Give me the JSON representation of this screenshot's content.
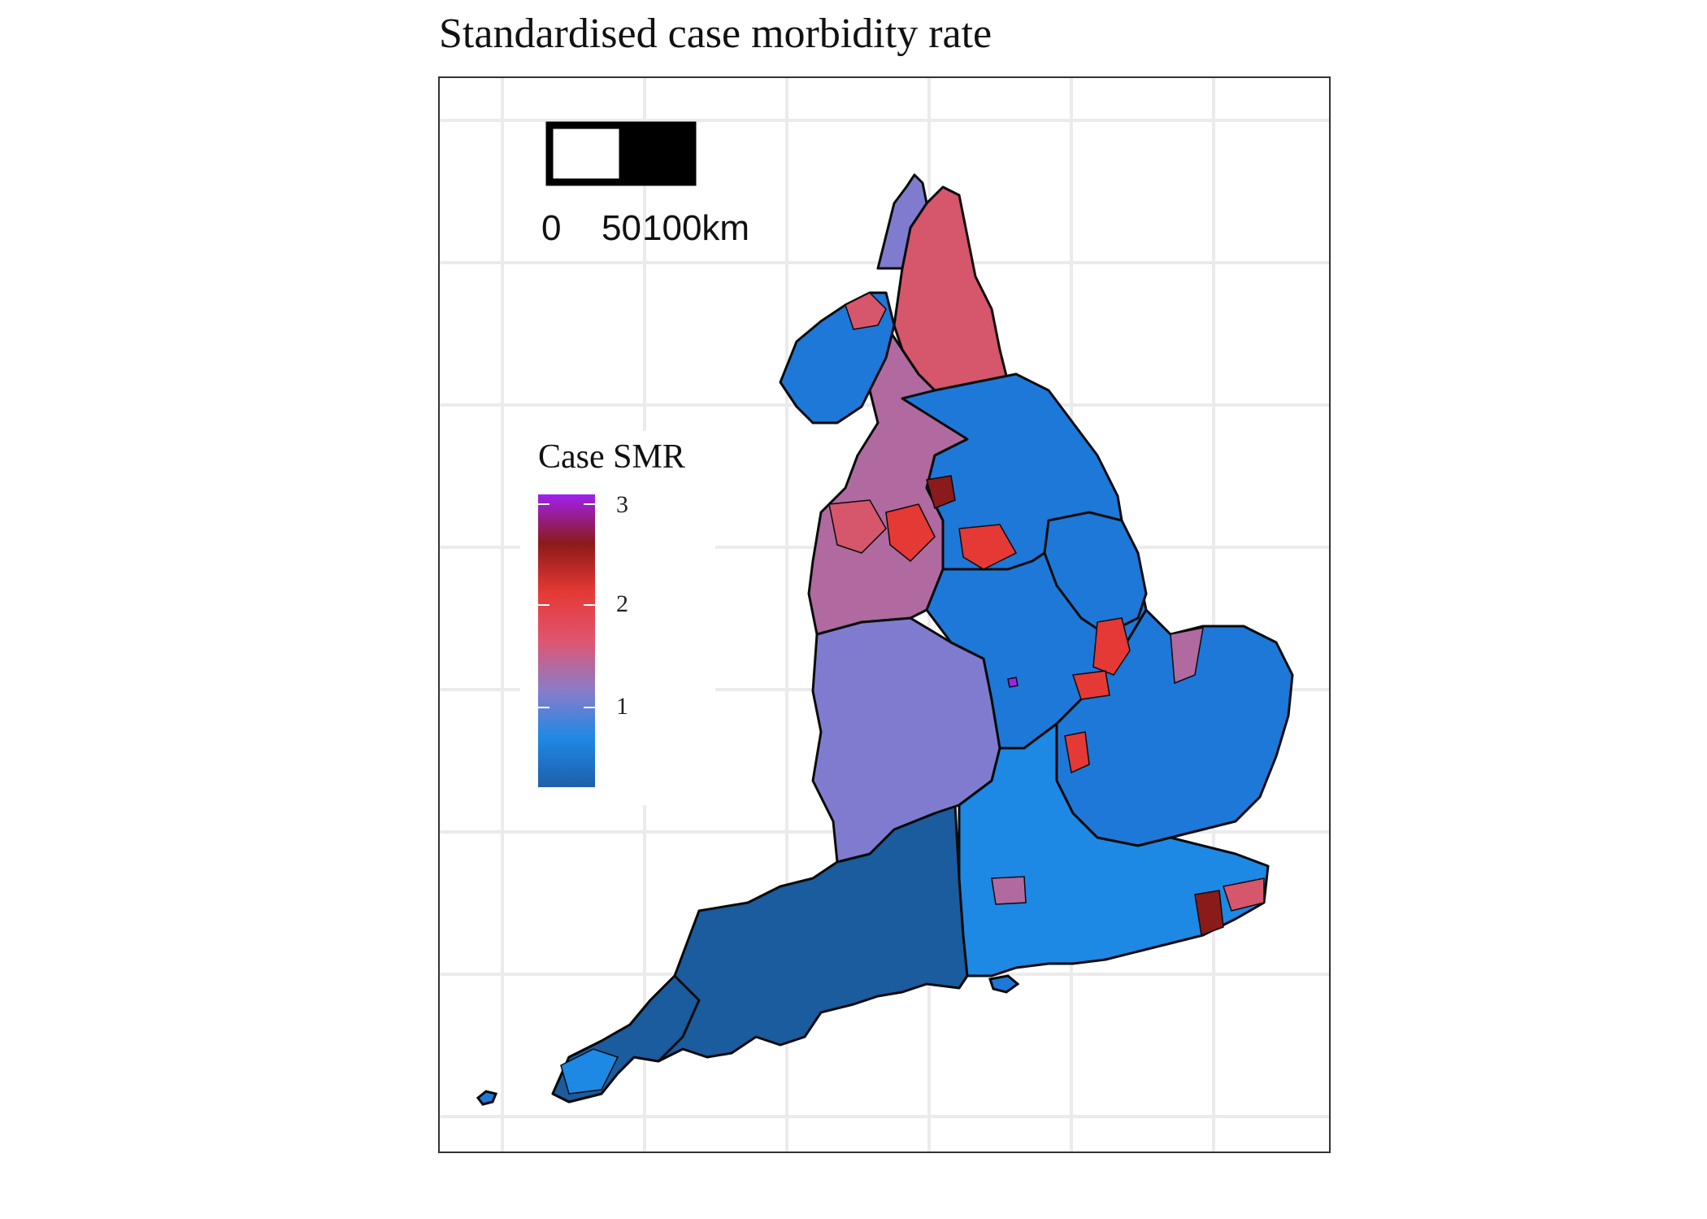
{
  "map": {
    "title": "Standardised case morbidity rate",
    "legend": {
      "title": "Case SMR",
      "ticks": [
        "1",
        "2",
        "3"
      ],
      "colors": [
        "#1f5fa8",
        "#1e88e5",
        "#8a7cc8",
        "#e05570",
        "#e53935",
        "#8b1a1a",
        "#a020f0"
      ]
    },
    "scale_bar": {
      "labels": [
        "0",
        "50",
        "100km"
      ]
    },
    "region_colors": {
      "low_dark": "#1a5c9e",
      "low": "#1e78d8",
      "bright_blue": "#1e88e5",
      "near_one": "#7f7ccf",
      "mauve": "#b06aa0",
      "pink": "#d6566c",
      "red": "#e53935",
      "dark_red": "#8b1a1a",
      "purple": "#a020f0"
    }
  }
}
